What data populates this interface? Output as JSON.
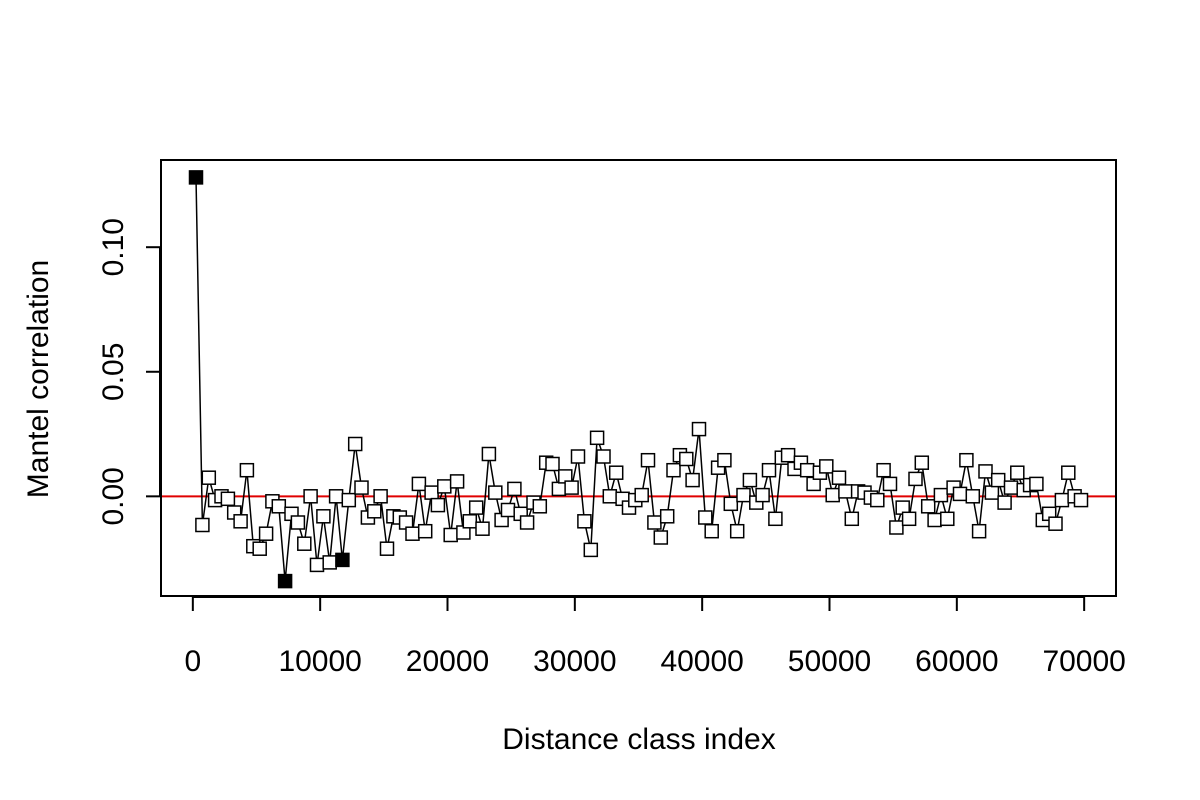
{
  "chart_data": {
    "type": "line",
    "xlabel": "Distance class index",
    "ylabel": "Mantel correlation",
    "xlim": [
      -2500,
      72500
    ],
    "ylim": [
      -0.04,
      0.135
    ],
    "x_ticks": [
      0,
      10000,
      20000,
      30000,
      40000,
      50000,
      60000,
      70000
    ],
    "x_tick_labels": [
      "0",
      "10000",
      "20000",
      "30000",
      "40000",
      "50000",
      "60000",
      "70000"
    ],
    "y_ticks": [
      0.0,
      0.05,
      0.1
    ],
    "y_tick_labels": [
      "0.00",
      "0.05",
      "0.10"
    ],
    "reference_line": {
      "y": 0,
      "color": "#e00000"
    },
    "series_color": "#000000",
    "marker": "square",
    "significant_marker_fill": "#000000",
    "nonsignificant_marker_fill": "#ffffff",
    "grid": false,
    "points": [
      {
        "x": 250,
        "y": 0.128,
        "sig": true
      },
      {
        "x": 750,
        "y": -0.0115,
        "sig": false
      },
      {
        "x": 1250,
        "y": 0.0075,
        "sig": false
      },
      {
        "x": 1750,
        "y": -0.0015,
        "sig": false
      },
      {
        "x": 2250,
        "y": 0.0,
        "sig": false
      },
      {
        "x": 2750,
        "y": -0.001,
        "sig": false
      },
      {
        "x": 3250,
        "y": -0.0065,
        "sig": false
      },
      {
        "x": 3750,
        "y": -0.01,
        "sig": false
      },
      {
        "x": 4250,
        "y": 0.0105,
        "sig": false
      },
      {
        "x": 4750,
        "y": -0.02,
        "sig": false
      },
      {
        "x": 5250,
        "y": -0.021,
        "sig": false
      },
      {
        "x": 5750,
        "y": -0.015,
        "sig": false
      },
      {
        "x": 6250,
        "y": -0.002,
        "sig": false
      },
      {
        "x": 6750,
        "y": -0.004,
        "sig": false
      },
      {
        "x": 7250,
        "y": -0.034,
        "sig": true
      },
      {
        "x": 7750,
        "y": -0.007,
        "sig": false
      },
      {
        "x": 8250,
        "y": -0.0105,
        "sig": false
      },
      {
        "x": 8750,
        "y": -0.019,
        "sig": false
      },
      {
        "x": 9250,
        "y": 0.0,
        "sig": false
      },
      {
        "x": 9750,
        "y": -0.0275,
        "sig": false
      },
      {
        "x": 10250,
        "y": -0.008,
        "sig": false
      },
      {
        "x": 10750,
        "y": -0.0265,
        "sig": false
      },
      {
        "x": 11250,
        "y": 0.0,
        "sig": false
      },
      {
        "x": 11750,
        "y": -0.0255,
        "sig": true
      },
      {
        "x": 12250,
        "y": -0.0015,
        "sig": false
      },
      {
        "x": 12750,
        "y": 0.021,
        "sig": false
      },
      {
        "x": 13250,
        "y": 0.0035,
        "sig": false
      },
      {
        "x": 13750,
        "y": -0.0085,
        "sig": false
      },
      {
        "x": 14250,
        "y": -0.006,
        "sig": false
      },
      {
        "x": 14750,
        "y": 0.0,
        "sig": false
      },
      {
        "x": 15250,
        "y": -0.021,
        "sig": false
      },
      {
        "x": 15750,
        "y": -0.008,
        "sig": false
      },
      {
        "x": 16250,
        "y": -0.0085,
        "sig": false
      },
      {
        "x": 16750,
        "y": -0.0105,
        "sig": false
      },
      {
        "x": 17250,
        "y": -0.015,
        "sig": false
      },
      {
        "x": 17750,
        "y": 0.005,
        "sig": false
      },
      {
        "x": 18250,
        "y": -0.014,
        "sig": false
      },
      {
        "x": 18750,
        "y": 0.0015,
        "sig": false
      },
      {
        "x": 19250,
        "y": -0.0035,
        "sig": false
      },
      {
        "x": 19750,
        "y": 0.004,
        "sig": false
      },
      {
        "x": 20250,
        "y": -0.0155,
        "sig": false
      },
      {
        "x": 20750,
        "y": 0.006,
        "sig": false
      },
      {
        "x": 21250,
        "y": -0.0145,
        "sig": false
      },
      {
        "x": 21750,
        "y": -0.01,
        "sig": false
      },
      {
        "x": 22250,
        "y": -0.0045,
        "sig": false
      },
      {
        "x": 22750,
        "y": -0.013,
        "sig": false
      },
      {
        "x": 23250,
        "y": 0.017,
        "sig": false
      },
      {
        "x": 23750,
        "y": 0.0015,
        "sig": false
      },
      {
        "x": 24250,
        "y": -0.0095,
        "sig": false
      },
      {
        "x": 24750,
        "y": -0.0055,
        "sig": false
      },
      {
        "x": 25250,
        "y": 0.003,
        "sig": false
      },
      {
        "x": 25750,
        "y": -0.007,
        "sig": false
      },
      {
        "x": 26250,
        "y": -0.0105,
        "sig": false
      },
      {
        "x": 26750,
        "y": -0.0025,
        "sig": false
      },
      {
        "x": 27250,
        "y": -0.004,
        "sig": false
      },
      {
        "x": 27750,
        "y": 0.0135,
        "sig": false
      },
      {
        "x": 28250,
        "y": 0.013,
        "sig": false
      },
      {
        "x": 28750,
        "y": 0.003,
        "sig": false
      },
      {
        "x": 29250,
        "y": 0.008,
        "sig": false
      },
      {
        "x": 29750,
        "y": 0.0035,
        "sig": false
      },
      {
        "x": 30250,
        "y": 0.016,
        "sig": false
      },
      {
        "x": 30750,
        "y": -0.01,
        "sig": false
      },
      {
        "x": 31250,
        "y": -0.0215,
        "sig": false
      },
      {
        "x": 31750,
        "y": 0.0235,
        "sig": false
      },
      {
        "x": 32250,
        "y": 0.016,
        "sig": false
      },
      {
        "x": 32750,
        "y": 0.0,
        "sig": false
      },
      {
        "x": 33250,
        "y": 0.0095,
        "sig": false
      },
      {
        "x": 33750,
        "y": -0.001,
        "sig": false
      },
      {
        "x": 34250,
        "y": -0.0045,
        "sig": false
      },
      {
        "x": 34750,
        "y": -0.0015,
        "sig": false
      },
      {
        "x": 35250,
        "y": 0.0005,
        "sig": false
      },
      {
        "x": 35750,
        "y": 0.0145,
        "sig": false
      },
      {
        "x": 36250,
        "y": -0.0105,
        "sig": false
      },
      {
        "x": 36750,
        "y": -0.0165,
        "sig": false
      },
      {
        "x": 37250,
        "y": -0.008,
        "sig": false
      },
      {
        "x": 37750,
        "y": 0.0105,
        "sig": false
      },
      {
        "x": 38250,
        "y": 0.0165,
        "sig": false
      },
      {
        "x": 38750,
        "y": 0.015,
        "sig": false
      },
      {
        "x": 39250,
        "y": 0.0065,
        "sig": false
      },
      {
        "x": 39750,
        "y": 0.027,
        "sig": false
      },
      {
        "x": 40250,
        "y": -0.0085,
        "sig": false
      },
      {
        "x": 40750,
        "y": -0.014,
        "sig": false
      },
      {
        "x": 41250,
        "y": 0.0115,
        "sig": false
      },
      {
        "x": 41750,
        "y": 0.0145,
        "sig": false
      },
      {
        "x": 42250,
        "y": -0.003,
        "sig": false
      },
      {
        "x": 42750,
        "y": -0.014,
        "sig": false
      },
      {
        "x": 43250,
        "y": 0.0005,
        "sig": false
      },
      {
        "x": 43750,
        "y": 0.0065,
        "sig": false
      },
      {
        "x": 44250,
        "y": -0.0025,
        "sig": false
      },
      {
        "x": 44750,
        "y": 0.0005,
        "sig": false
      },
      {
        "x": 45250,
        "y": 0.0105,
        "sig": false
      },
      {
        "x": 45750,
        "y": -0.009,
        "sig": false
      },
      {
        "x": 46250,
        "y": 0.0155,
        "sig": false
      },
      {
        "x": 46750,
        "y": 0.0165,
        "sig": false
      },
      {
        "x": 47250,
        "y": 0.011,
        "sig": false
      },
      {
        "x": 47750,
        "y": 0.0135,
        "sig": false
      },
      {
        "x": 48250,
        "y": 0.0105,
        "sig": false
      },
      {
        "x": 48750,
        "y": 0.005,
        "sig": false
      },
      {
        "x": 49250,
        "y": 0.0095,
        "sig": false
      },
      {
        "x": 49750,
        "y": 0.012,
        "sig": false
      },
      {
        "x": 50250,
        "y": 0.0005,
        "sig": false
      },
      {
        "x": 50750,
        "y": 0.0075,
        "sig": false
      },
      {
        "x": 51250,
        "y": 0.002,
        "sig": false
      },
      {
        "x": 51750,
        "y": -0.009,
        "sig": false
      },
      {
        "x": 52250,
        "y": 0.002,
        "sig": false
      },
      {
        "x": 52750,
        "y": 0.0015,
        "sig": false
      },
      {
        "x": 53250,
        "y": -0.0005,
        "sig": false
      },
      {
        "x": 53750,
        "y": -0.0015,
        "sig": false
      },
      {
        "x": 54250,
        "y": 0.0105,
        "sig": false
      },
      {
        "x": 54750,
        "y": 0.005,
        "sig": false
      },
      {
        "x": 55250,
        "y": -0.0125,
        "sig": false
      },
      {
        "x": 55750,
        "y": -0.0045,
        "sig": false
      },
      {
        "x": 56250,
        "y": -0.009,
        "sig": false
      },
      {
        "x": 56750,
        "y": 0.007,
        "sig": false
      },
      {
        "x": 57250,
        "y": 0.0135,
        "sig": false
      },
      {
        "x": 57750,
        "y": -0.004,
        "sig": false
      },
      {
        "x": 58250,
        "y": -0.0095,
        "sig": false
      },
      {
        "x": 58750,
        "y": 0.0005,
        "sig": false
      },
      {
        "x": 59250,
        "y": -0.009,
        "sig": false
      },
      {
        "x": 59750,
        "y": 0.0035,
        "sig": false
      },
      {
        "x": 60250,
        "y": 0.001,
        "sig": false
      },
      {
        "x": 60750,
        "y": 0.0145,
        "sig": false
      },
      {
        "x": 61250,
        "y": 0.0,
        "sig": false
      },
      {
        "x": 61750,
        "y": -0.014,
        "sig": false
      },
      {
        "x": 62250,
        "y": 0.01,
        "sig": false
      },
      {
        "x": 62750,
        "y": 0.0015,
        "sig": false
      },
      {
        "x": 63250,
        "y": 0.0065,
        "sig": false
      },
      {
        "x": 63750,
        "y": -0.0025,
        "sig": false
      },
      {
        "x": 64250,
        "y": 0.0035,
        "sig": false
      },
      {
        "x": 64750,
        "y": 0.0095,
        "sig": false
      },
      {
        "x": 65250,
        "y": 0.0025,
        "sig": false
      },
      {
        "x": 65750,
        "y": 0.0045,
        "sig": false
      },
      {
        "x": 66250,
        "y": 0.005,
        "sig": false
      },
      {
        "x": 66750,
        "y": -0.0095,
        "sig": false
      },
      {
        "x": 67250,
        "y": -0.007,
        "sig": false
      },
      {
        "x": 67750,
        "y": -0.011,
        "sig": false
      },
      {
        "x": 68250,
        "y": -0.0015,
        "sig": false
      },
      {
        "x": 68750,
        "y": 0.0095,
        "sig": false
      },
      {
        "x": 69250,
        "y": 0.0,
        "sig": false
      },
      {
        "x": 69750,
        "y": -0.0015,
        "sig": false
      }
    ]
  }
}
